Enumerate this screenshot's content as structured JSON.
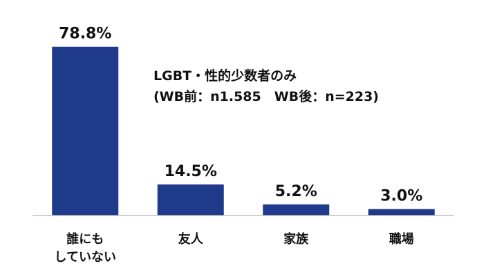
{
  "chart_data": {
    "type": "bar",
    "categories": [
      [
        "誰にも",
        "していない"
      ],
      [
        "友人"
      ],
      [
        "家族"
      ],
      [
        "職場"
      ]
    ],
    "values": [
      78.8,
      14.5,
      5.2,
      3.0
    ],
    "value_labels": [
      "78.8%",
      "14.5%",
      "5.2%",
      "3.0%"
    ],
    "ylim": [
      0,
      80
    ],
    "grid": false,
    "bar_color": "#1f3a8a",
    "axis_color": "#bfbfbf",
    "annotation": [
      "LGBT・性的少数者のみ",
      "(WB前：n1.585　WB後：n=223)"
    ]
  }
}
